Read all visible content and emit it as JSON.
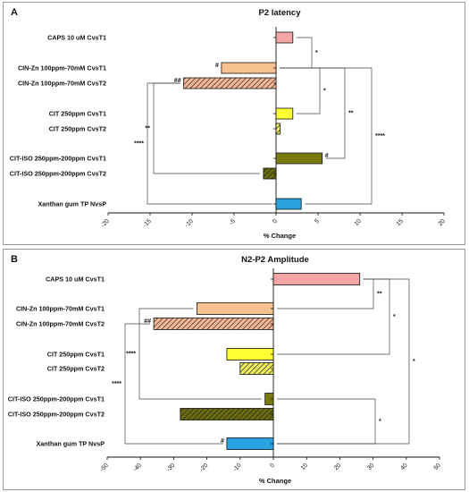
{
  "chart_data": [
    {
      "type": "bar",
      "orientation": "horizontal",
      "panel_label": "A",
      "title": "P2 latency",
      "xlabel": "% Change",
      "xlim": [
        -20,
        20
      ],
      "xticks": [
        -20,
        -15,
        -10,
        -5,
        0,
        5,
        10,
        15,
        20
      ],
      "categories": [
        "CAPS 10 uM CvsT1",
        "CIN-Zn 100ppm-70mM CvsT1",
        "CIN-Zn 100ppm-70mM CvsT2",
        "CIT 250ppm CvsT1",
        "CIT 250ppm CvsT2",
        "CIT-ISO 250ppm-200ppm CvsT1",
        "CIT-ISO 250ppm-200ppm CvsT2",
        "Xanthan gum TP NvsP"
      ],
      "values": [
        2.0,
        -6.5,
        -11.0,
        2.0,
        0.5,
        5.5,
        -1.5,
        3.0
      ],
      "colors": [
        "#f4a5a5",
        "#f7c28f",
        "#f7b898",
        "#ffff33",
        "#f0f060",
        "#7a7a10",
        "#6b6b10",
        "#29a3e0"
      ],
      "hatched": [
        false,
        false,
        true,
        false,
        true,
        false,
        true,
        false
      ],
      "bar_marks": [
        {
          "bar": 1,
          "text": "#"
        },
        {
          "bar": 2,
          "text": "##"
        },
        {
          "bar": 5,
          "text": "#"
        }
      ],
      "brackets": [
        {
          "from": 0,
          "to": 1,
          "text": "*"
        },
        {
          "from": 1,
          "to": 3,
          "text": "*"
        },
        {
          "from": 1,
          "to": 5,
          "text": "**"
        },
        {
          "from": 1,
          "to": 7,
          "text": "****"
        },
        {
          "from": 2,
          "to": 6,
          "text": "**"
        },
        {
          "from": 2,
          "to": 7,
          "text": "****"
        }
      ]
    },
    {
      "type": "bar",
      "orientation": "horizontal",
      "panel_label": "B",
      "title": "N2-P2 Amplitude",
      "xlabel": "% Change",
      "xlim": [
        -50,
        50
      ],
      "xticks": [
        -50,
        -40,
        -30,
        -20,
        -10,
        0,
        10,
        20,
        30,
        40,
        50
      ],
      "categories": [
        "CAPS 10 uM CvsT1",
        "CIN-Zn 100ppm-70mM CvsT1",
        "CIN-Zn 100ppm-70mM CvsT2",
        "CIT 250ppm CvsT1",
        "CIT 250ppm CvsT2",
        "CIT-ISO 250ppm-200ppm CvsT1",
        "CIT-ISO 250ppm-200ppm CvsT2",
        "Xanthan gum TP NvsP"
      ],
      "values": [
        26,
        -23,
        -36,
        -14,
        -10,
        -2.5,
        -28,
        -14
      ],
      "colors": [
        "#f4a5a5",
        "#f7c28f",
        "#f7b898",
        "#ffff33",
        "#f0f060",
        "#7a7a10",
        "#6b6b10",
        "#29a3e0"
      ],
      "hatched": [
        false,
        false,
        true,
        false,
        true,
        false,
        true,
        false
      ],
      "bar_marks": [
        {
          "bar": 2,
          "text": "##"
        },
        {
          "bar": 7,
          "text": "#"
        }
      ],
      "brackets": [
        {
          "from": 0,
          "to": 1,
          "text": "**"
        },
        {
          "from": 0,
          "to": 3,
          "text": "*"
        },
        {
          "from": 0,
          "to": 7,
          "text": "*"
        },
        {
          "from": 1,
          "to": 5,
          "text": "****"
        },
        {
          "from": 2,
          "to": 7,
          "text": "****"
        },
        {
          "from": 5,
          "to": 7,
          "text": "*"
        }
      ]
    }
  ]
}
